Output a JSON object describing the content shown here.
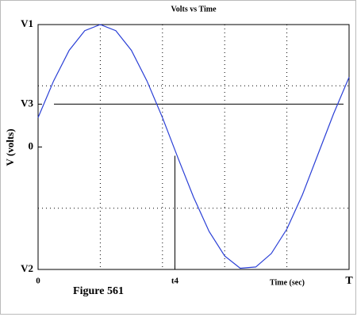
{
  "chart_data": {
    "type": "line",
    "title": "Volts vs Time",
    "xlabel": "Time (sec)",
    "ylabel": "V (volts)",
    "annotation": "Figure 561",
    "x": [
      0,
      0.05,
      0.1,
      0.15,
      0.2,
      0.25,
      0.3,
      0.35,
      0.4,
      0.45,
      0.5,
      0.55,
      0.6,
      0.65,
      0.7,
      0.75,
      0.8,
      0.85,
      0.9,
      0.95,
      1
    ],
    "series": [
      {
        "color": "#2a3fd6",
        "values": [
          0.24,
          0.54,
          0.79,
          0.95,
          1,
          0.95,
          0.79,
          0.54,
          0.24,
          -0.09,
          -0.41,
          -0.69,
          -0.89,
          -0.99,
          -0.98,
          -0.87,
          -0.67,
          -0.39,
          -0.06,
          0.27,
          0.57
        ]
      }
    ],
    "xlim": [
      0,
      1
    ],
    "ylim": [
      -1,
      1
    ],
    "xticks": [
      {
        "value": 0,
        "label": "0"
      },
      {
        "value": 0.44,
        "label": "t4"
      },
      {
        "value": 1,
        "label": "T"
      }
    ],
    "yticks": [
      {
        "value": 1,
        "label": "V1"
      },
      {
        "value": 0.35,
        "label": "V3"
      },
      0,
      {
        "value": -1,
        "label": "V2"
      }
    ],
    "xgrid": [
      0.2,
      0.4,
      0.6,
      0.8
    ],
    "ygrid": [
      -0.5,
      0.5
    ]
  }
}
